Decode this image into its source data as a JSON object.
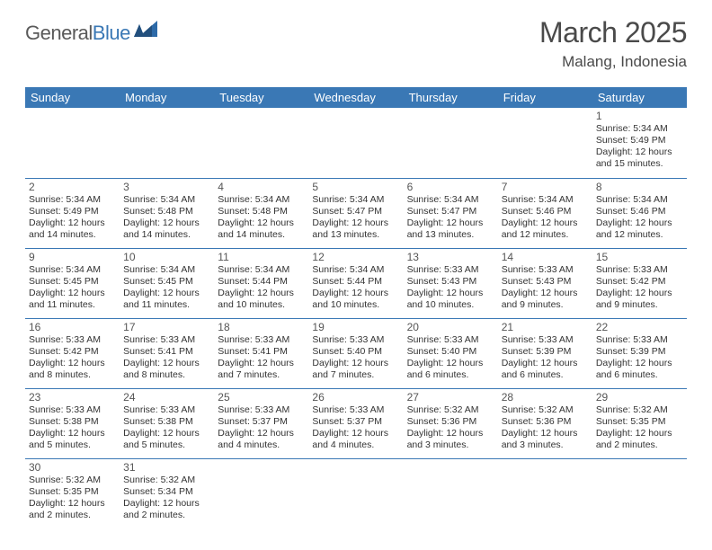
{
  "logo": {
    "brand_a": "General",
    "brand_b": "Blue"
  },
  "title": "March 2025",
  "location": "Malang, Indonesia",
  "colors": {
    "header_bg": "#3a78b5",
    "header_fg": "#ffffff",
    "rule": "#3a78b5",
    "text": "#333333",
    "title_text": "#4a4a4a"
  },
  "day_names": [
    "Sunday",
    "Monday",
    "Tuesday",
    "Wednesday",
    "Thursday",
    "Friday",
    "Saturday"
  ],
  "weeks": [
    [
      null,
      null,
      null,
      null,
      null,
      null,
      {
        "n": "1",
        "sr": "Sunrise: 5:34 AM",
        "ss": "Sunset: 5:49 PM",
        "dl": "Daylight: 12 hours and 15 minutes."
      }
    ],
    [
      {
        "n": "2",
        "sr": "Sunrise: 5:34 AM",
        "ss": "Sunset: 5:49 PM",
        "dl": "Daylight: 12 hours and 14 minutes."
      },
      {
        "n": "3",
        "sr": "Sunrise: 5:34 AM",
        "ss": "Sunset: 5:48 PM",
        "dl": "Daylight: 12 hours and 14 minutes."
      },
      {
        "n": "4",
        "sr": "Sunrise: 5:34 AM",
        "ss": "Sunset: 5:48 PM",
        "dl": "Daylight: 12 hours and 14 minutes."
      },
      {
        "n": "5",
        "sr": "Sunrise: 5:34 AM",
        "ss": "Sunset: 5:47 PM",
        "dl": "Daylight: 12 hours and 13 minutes."
      },
      {
        "n": "6",
        "sr": "Sunrise: 5:34 AM",
        "ss": "Sunset: 5:47 PM",
        "dl": "Daylight: 12 hours and 13 minutes."
      },
      {
        "n": "7",
        "sr": "Sunrise: 5:34 AM",
        "ss": "Sunset: 5:46 PM",
        "dl": "Daylight: 12 hours and 12 minutes."
      },
      {
        "n": "8",
        "sr": "Sunrise: 5:34 AM",
        "ss": "Sunset: 5:46 PM",
        "dl": "Daylight: 12 hours and 12 minutes."
      }
    ],
    [
      {
        "n": "9",
        "sr": "Sunrise: 5:34 AM",
        "ss": "Sunset: 5:45 PM",
        "dl": "Daylight: 12 hours and 11 minutes."
      },
      {
        "n": "10",
        "sr": "Sunrise: 5:34 AM",
        "ss": "Sunset: 5:45 PM",
        "dl": "Daylight: 12 hours and 11 minutes."
      },
      {
        "n": "11",
        "sr": "Sunrise: 5:34 AM",
        "ss": "Sunset: 5:44 PM",
        "dl": "Daylight: 12 hours and 10 minutes."
      },
      {
        "n": "12",
        "sr": "Sunrise: 5:34 AM",
        "ss": "Sunset: 5:44 PM",
        "dl": "Daylight: 12 hours and 10 minutes."
      },
      {
        "n": "13",
        "sr": "Sunrise: 5:33 AM",
        "ss": "Sunset: 5:43 PM",
        "dl": "Daylight: 12 hours and 10 minutes."
      },
      {
        "n": "14",
        "sr": "Sunrise: 5:33 AM",
        "ss": "Sunset: 5:43 PM",
        "dl": "Daylight: 12 hours and 9 minutes."
      },
      {
        "n": "15",
        "sr": "Sunrise: 5:33 AM",
        "ss": "Sunset: 5:42 PM",
        "dl": "Daylight: 12 hours and 9 minutes."
      }
    ],
    [
      {
        "n": "16",
        "sr": "Sunrise: 5:33 AM",
        "ss": "Sunset: 5:42 PM",
        "dl": "Daylight: 12 hours and 8 minutes."
      },
      {
        "n": "17",
        "sr": "Sunrise: 5:33 AM",
        "ss": "Sunset: 5:41 PM",
        "dl": "Daylight: 12 hours and 8 minutes."
      },
      {
        "n": "18",
        "sr": "Sunrise: 5:33 AM",
        "ss": "Sunset: 5:41 PM",
        "dl": "Daylight: 12 hours and 7 minutes."
      },
      {
        "n": "19",
        "sr": "Sunrise: 5:33 AM",
        "ss": "Sunset: 5:40 PM",
        "dl": "Daylight: 12 hours and 7 minutes."
      },
      {
        "n": "20",
        "sr": "Sunrise: 5:33 AM",
        "ss": "Sunset: 5:40 PM",
        "dl": "Daylight: 12 hours and 6 minutes."
      },
      {
        "n": "21",
        "sr": "Sunrise: 5:33 AM",
        "ss": "Sunset: 5:39 PM",
        "dl": "Daylight: 12 hours and 6 minutes."
      },
      {
        "n": "22",
        "sr": "Sunrise: 5:33 AM",
        "ss": "Sunset: 5:39 PM",
        "dl": "Daylight: 12 hours and 6 minutes."
      }
    ],
    [
      {
        "n": "23",
        "sr": "Sunrise: 5:33 AM",
        "ss": "Sunset: 5:38 PM",
        "dl": "Daylight: 12 hours and 5 minutes."
      },
      {
        "n": "24",
        "sr": "Sunrise: 5:33 AM",
        "ss": "Sunset: 5:38 PM",
        "dl": "Daylight: 12 hours and 5 minutes."
      },
      {
        "n": "25",
        "sr": "Sunrise: 5:33 AM",
        "ss": "Sunset: 5:37 PM",
        "dl": "Daylight: 12 hours and 4 minutes."
      },
      {
        "n": "26",
        "sr": "Sunrise: 5:33 AM",
        "ss": "Sunset: 5:37 PM",
        "dl": "Daylight: 12 hours and 4 minutes."
      },
      {
        "n": "27",
        "sr": "Sunrise: 5:32 AM",
        "ss": "Sunset: 5:36 PM",
        "dl": "Daylight: 12 hours and 3 minutes."
      },
      {
        "n": "28",
        "sr": "Sunrise: 5:32 AM",
        "ss": "Sunset: 5:36 PM",
        "dl": "Daylight: 12 hours and 3 minutes."
      },
      {
        "n": "29",
        "sr": "Sunrise: 5:32 AM",
        "ss": "Sunset: 5:35 PM",
        "dl": "Daylight: 12 hours and 2 minutes."
      }
    ],
    [
      {
        "n": "30",
        "sr": "Sunrise: 5:32 AM",
        "ss": "Sunset: 5:35 PM",
        "dl": "Daylight: 12 hours and 2 minutes."
      },
      {
        "n": "31",
        "sr": "Sunrise: 5:32 AM",
        "ss": "Sunset: 5:34 PM",
        "dl": "Daylight: 12 hours and 2 minutes."
      },
      null,
      null,
      null,
      null,
      null
    ]
  ]
}
